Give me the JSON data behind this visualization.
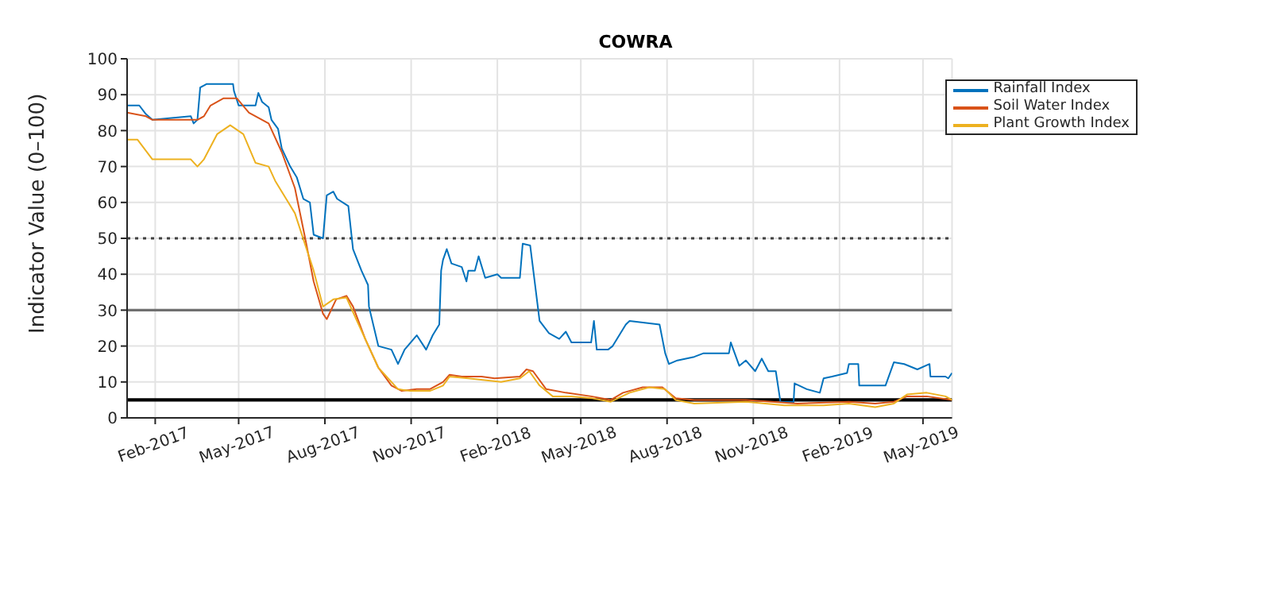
{
  "chart_data": {
    "type": "line",
    "title": "COWRA",
    "ylabel": "Indicator Value (0–100)",
    "xlim": [
      "2017-01-02",
      "2019-06-01"
    ],
    "xticks": [
      {
        "value": "2017-02-01",
        "label": "Feb-2017"
      },
      {
        "value": "2017-05-01",
        "label": "May-2017"
      },
      {
        "value": "2017-08-01",
        "label": "Aug-2017"
      },
      {
        "value": "2017-11-01",
        "label": "Nov-2017"
      },
      {
        "value": "2018-02-01",
        "label": "Feb-2018"
      },
      {
        "value": "2018-05-01",
        "label": "May-2018"
      },
      {
        "value": "2018-08-01",
        "label": "Aug-2018"
      },
      {
        "value": "2018-11-01",
        "label": "Nov-2018"
      },
      {
        "value": "2019-02-01",
        "label": "Feb-2019"
      },
      {
        "value": "2019-05-01",
        "label": "May-2019"
      }
    ],
    "ylim": [
      0,
      100
    ],
    "yticks": [
      0,
      10,
      20,
      30,
      40,
      50,
      60,
      70,
      80,
      90,
      100
    ],
    "grid": true,
    "legend": "top right",
    "marker": "none",
    "line_style": "solid",
    "series": [
      {
        "name": "Rainfall Index",
        "color": "#0072bd",
        "x": [
          "2017-01-02",
          "2017-01-15",
          "2017-01-22",
          "2017-01-29",
          "2017-03-11",
          "2017-03-14",
          "2017-03-18",
          "2017-03-21",
          "2017-03-28",
          "2017-04-25",
          "2017-04-26",
          "2017-05-01",
          "2017-05-19",
          "2017-05-22",
          "2017-05-26",
          "2017-06-02",
          "2017-06-05",
          "2017-06-12",
          "2017-06-16",
          "2017-06-25",
          "2017-07-02",
          "2017-07-09",
          "2017-07-16",
          "2017-07-20",
          "2017-07-30",
          "2017-08-03",
          "2017-08-10",
          "2017-08-14",
          "2017-08-26",
          "2017-08-31",
          "2017-09-09",
          "2017-09-16",
          "2017-09-17",
          "2017-09-27",
          "2017-10-11",
          "2017-10-18",
          "2017-10-25",
          "2017-11-07",
          "2017-11-17",
          "2017-11-24",
          "2017-12-01",
          "2017-12-03",
          "2017-12-05",
          "2017-12-09",
          "2017-12-14",
          "2017-12-25",
          "2017-12-30",
          "2018-01-01",
          "2018-01-08",
          "2018-01-12",
          "2018-01-19",
          "2018-02-01",
          "2018-02-05",
          "2018-02-25",
          "2018-02-28",
          "2018-03-08",
          "2018-03-18",
          "2018-03-28",
          "2018-04-08",
          "2018-04-15",
          "2018-04-21",
          "2018-05-12",
          "2018-05-15",
          "2018-05-18",
          "2018-05-30",
          "2018-06-04",
          "2018-06-18",
          "2018-06-22",
          "2018-07-24",
          "2018-07-30",
          "2018-08-03",
          "2018-08-12",
          "2018-08-30",
          "2018-09-09",
          "2018-10-06",
          "2018-10-08",
          "2018-10-17",
          "2018-10-24",
          "2018-11-03",
          "2018-11-10",
          "2018-11-17",
          "2018-11-25",
          "2018-11-30",
          "2018-12-14",
          "2018-12-15",
          "2018-12-28",
          "2019-01-11",
          "2019-01-15",
          "2019-01-24",
          "2019-02-09",
          "2019-02-11",
          "2019-02-21",
          "2019-02-22",
          "2019-03-22",
          "2019-03-31",
          "2019-04-11",
          "2019-04-25",
          "2019-05-08",
          "2019-05-09",
          "2019-05-25",
          "2019-05-28",
          "2019-06-01"
        ],
        "values": [
          87,
          87,
          84.6,
          83,
          84,
          82,
          83,
          92,
          93,
          93,
          91,
          87,
          87,
          90.5,
          88,
          86.5,
          83,
          80.5,
          75,
          70,
          67,
          61,
          60,
          51,
          50,
          62,
          63,
          61,
          59,
          47,
          41,
          37,
          31,
          20,
          19,
          15,
          19,
          23,
          19,
          23,
          26,
          41,
          44,
          47,
          43,
          42,
          38,
          41,
          41,
          45,
          39,
          40,
          39,
          39,
          48.5,
          48,
          27,
          23.6,
          22,
          24,
          21,
          21,
          27,
          19,
          19,
          20,
          26,
          27,
          26,
          18,
          15,
          16,
          17,
          18,
          18,
          21,
          14.5,
          16,
          13,
          16.5,
          13,
          13,
          4.4,
          4.4,
          9.6,
          8,
          7,
          11,
          11.5,
          12.5,
          15,
          15,
          9,
          9,
          15.5,
          15,
          13.5,
          15,
          11.5,
          11.5,
          11,
          12.5
        ]
      },
      {
        "name": "Soil Water Index",
        "color": "#d95319",
        "x": [
          "2017-01-02",
          "2017-01-22",
          "2017-01-29",
          "2017-03-18",
          "2017-03-25",
          "2017-04-01",
          "2017-04-15",
          "2017-04-29",
          "2017-05-12",
          "2017-05-26",
          "2017-06-02",
          "2017-06-16",
          "2017-06-30",
          "2017-07-11",
          "2017-07-20",
          "2017-07-30",
          "2017-08-03",
          "2017-08-13",
          "2017-08-24",
          "2017-08-31",
          "2017-09-13",
          "2017-09-27",
          "2017-10-11",
          "2017-10-22",
          "2017-11-07",
          "2017-11-21",
          "2017-12-05",
          "2017-12-12",
          "2017-12-25",
          "2018-01-15",
          "2018-01-29",
          "2018-02-25",
          "2018-03-04",
          "2018-03-11",
          "2018-03-25",
          "2018-04-15",
          "2018-05-12",
          "2018-06-02",
          "2018-06-15",
          "2018-07-06",
          "2018-07-27",
          "2018-08-10",
          "2018-08-30",
          "2018-10-24",
          "2018-11-21",
          "2018-12-18",
          "2019-02-11",
          "2019-03-11",
          "2019-03-31",
          "2019-04-14",
          "2019-05-05",
          "2019-06-01"
        ],
        "values": [
          85,
          84,
          83,
          83,
          84,
          87,
          89,
          89,
          85,
          83,
          82,
          74,
          64,
          50,
          38,
          29,
          27.5,
          33,
          34,
          31,
          22,
          14,
          9,
          7.5,
          8,
          8,
          10,
          12,
          11.5,
          11.5,
          11,
          11.5,
          13.5,
          13,
          8,
          7,
          6,
          5,
          7,
          8.5,
          8.5,
          5.5,
          5,
          5,
          4.5,
          4,
          4.5,
          4,
          4.5,
          6,
          6,
          5
        ]
      },
      {
        "name": "Plant Growth Index",
        "color": "#edb120",
        "x": [
          "2017-01-02",
          "2017-01-13",
          "2017-01-29",
          "2017-03-11",
          "2017-03-18",
          "2017-03-25",
          "2017-04-08",
          "2017-04-22",
          "2017-05-06",
          "2017-05-19",
          "2017-06-02",
          "2017-06-09",
          "2017-06-30",
          "2017-07-20",
          "2017-07-30",
          "2017-08-10",
          "2017-08-24",
          "2017-09-06",
          "2017-09-27",
          "2017-10-18",
          "2017-10-31",
          "2017-11-21",
          "2017-12-05",
          "2017-12-12",
          "2018-01-01",
          "2018-02-05",
          "2018-02-25",
          "2018-03-07",
          "2018-03-18",
          "2018-04-01",
          "2018-04-21",
          "2018-05-12",
          "2018-06-02",
          "2018-06-22",
          "2018-07-13",
          "2018-07-30",
          "2018-08-10",
          "2018-08-30",
          "2018-10-24",
          "2018-12-04",
          "2019-01-15",
          "2019-02-11",
          "2019-03-11",
          "2019-03-31",
          "2019-04-14",
          "2019-05-05",
          "2019-05-25",
          "2019-06-01"
        ],
        "values": [
          77.5,
          77.5,
          72,
          72,
          70,
          72,
          79,
          81.5,
          79,
          71,
          70,
          66,
          57,
          41,
          31,
          33,
          33.5,
          26,
          14,
          8,
          7.5,
          7.5,
          9,
          11.5,
          11,
          10,
          11,
          13,
          9,
          6,
          6,
          5.5,
          4.5,
          7,
          8.5,
          8,
          5,
          4,
          4.5,
          3.5,
          3.5,
          4,
          3,
          4,
          6.5,
          7,
          6,
          5
        ]
      }
    ],
    "ref_lines": [
      {
        "axis": "y",
        "value": 50,
        "color": "#404040",
        "line_style": "dotted"
      },
      {
        "axis": "y",
        "value": 30,
        "color": "#707070",
        "line_style": "solid"
      },
      {
        "axis": "y",
        "value": 5,
        "color": "#000000",
        "line_style": "solid"
      }
    ]
  }
}
